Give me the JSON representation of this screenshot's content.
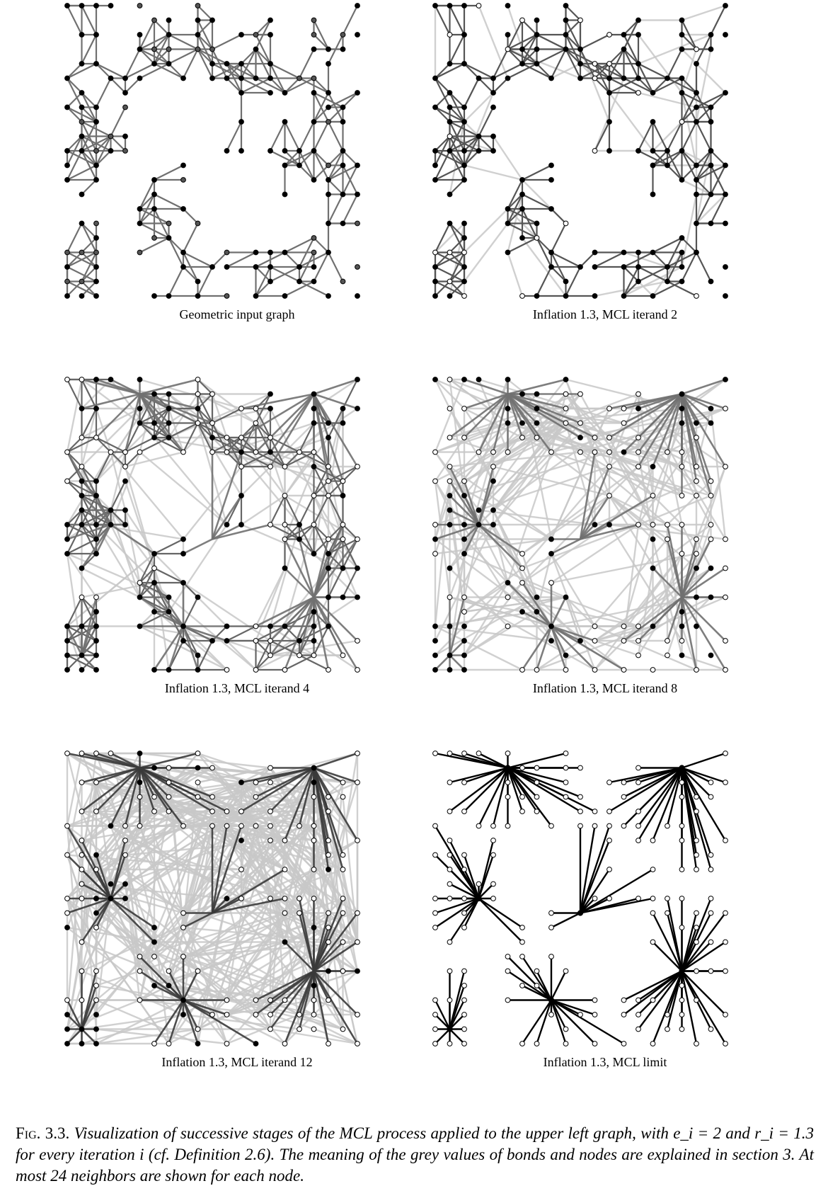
{
  "figure": {
    "panels": [
      {
        "id": "input",
        "caption": "Geometric input graph",
        "style": "input"
      },
      {
        "id": "iter2",
        "caption": "Inflation 1.3, MCL iterand 2",
        "style": "iter2"
      },
      {
        "id": "iter4",
        "caption": "Inflation 1.3, MCL iterand 4",
        "style": "iter4"
      },
      {
        "id": "iter8",
        "caption": "Inflation 1.3, MCL iterand 8",
        "style": "iter8"
      },
      {
        "id": "iter12",
        "caption": "Inflation 1.3, MCL iterand 12",
        "style": "iter12"
      },
      {
        "id": "limit",
        "caption": "Inflation 1.3, MCL limit",
        "style": "limit"
      }
    ],
    "caption_lead": "Fig. 3.3.",
    "caption_body": "Visualization of successive stages of the MCL process applied to the upper left graph, with e_i = 2 and r_i = 1.3 for every iteration i (cf. Definition 2.6). The meaning of the grey values of bonds and nodes are explained in section 3. At most 24 neighbors are shown for each node."
  },
  "colors": {
    "edge_dark": "#3a3a3a",
    "edge_mid": "#707070",
    "edge_light": "#c8c8c8",
    "node_black": "#000000",
    "node_white": "#ffffff"
  }
}
